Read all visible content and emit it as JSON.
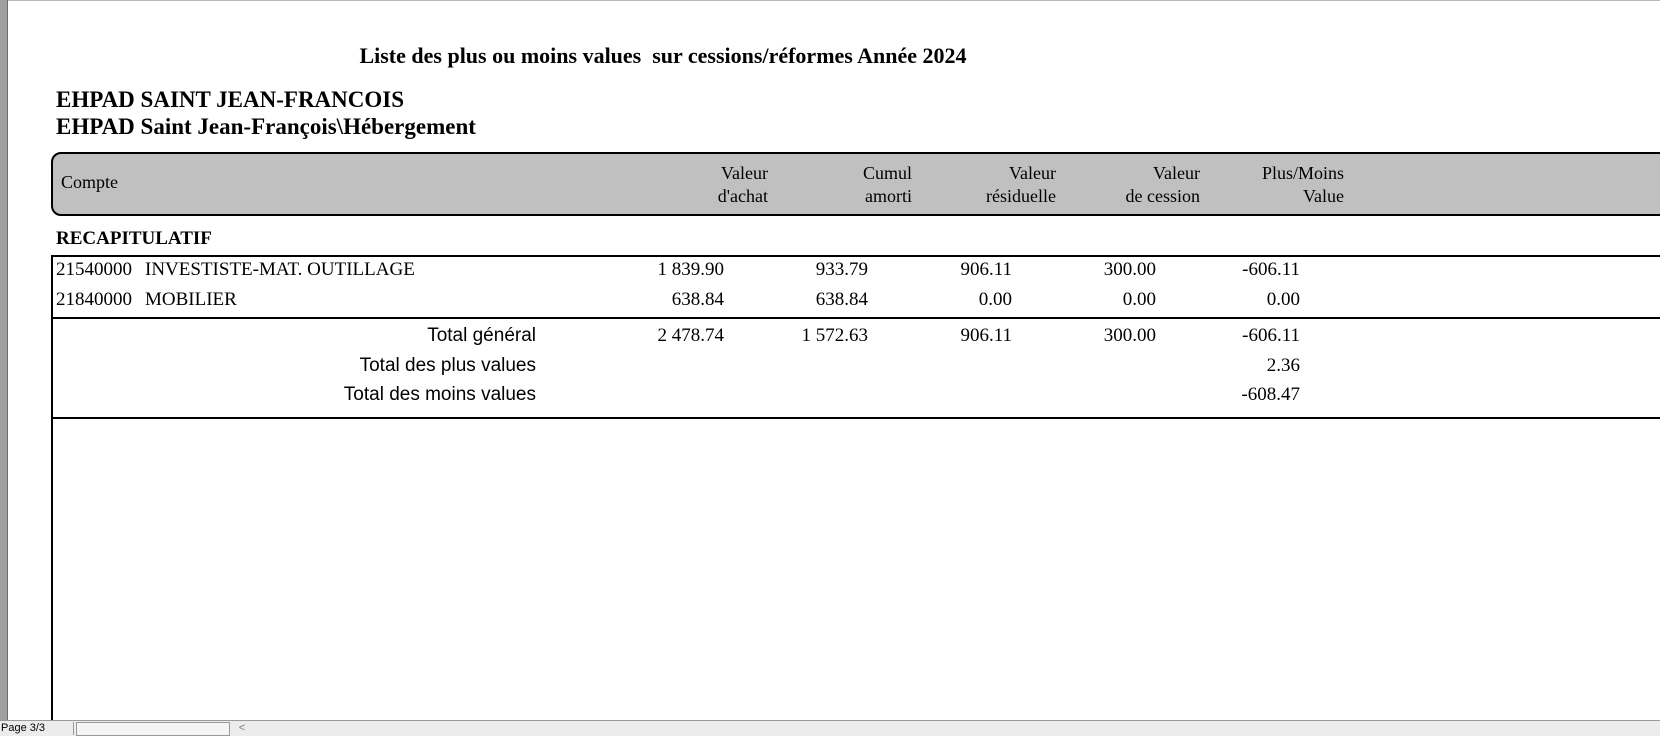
{
  "report": {
    "title": "Liste des plus ou moins values  sur cessions/réformes Année 2024",
    "org_name": "EHPAD SAINT JEAN-FRANCOIS",
    "org_unit": "EHPAD Saint Jean-François\\Hébergement"
  },
  "columns": {
    "compte": "Compte",
    "valeur_achat": [
      "Valeur",
      "d'achat"
    ],
    "cumul_amorti": [
      "Cumul",
      "amorti"
    ],
    "valeur_residuelle": [
      "Valeur",
      "résiduelle"
    ],
    "valeur_cession": [
      "Valeur",
      "de cession"
    ],
    "plus_moins": [
      "Plus/Moins",
      "Value"
    ]
  },
  "section_label": "RECAPITULATIF",
  "rows": [
    {
      "account": "21540000",
      "label": "INVESTISTE-MAT. OUTILLAGE",
      "valeur_achat": "1 839.90",
      "cumul_amorti": "933.79",
      "valeur_residuelle": "906.11",
      "valeur_cession": "300.00",
      "plus_moins": "-606.11"
    },
    {
      "account": "21840000",
      "label": "MOBILIER",
      "valeur_achat": "638.84",
      "cumul_amorti": "638.84",
      "valeur_residuelle": "0.00",
      "valeur_cession": "0.00",
      "plus_moins": "0.00"
    }
  ],
  "totals": {
    "general": {
      "label": "Total général",
      "valeur_achat": "2 478.74",
      "cumul_amorti": "1 572.63",
      "valeur_residuelle": "906.11",
      "valeur_cession": "300.00",
      "plus_moins": "-606.11"
    },
    "plus_values": {
      "label": "Total des plus values",
      "plus_moins": "2.36"
    },
    "moins_values": {
      "label": "Total des moins values",
      "plus_moins": "-608.47"
    }
  },
  "status_bar": {
    "page_indicator": "Page 3/3",
    "scroll_left_glyph": "<"
  }
}
